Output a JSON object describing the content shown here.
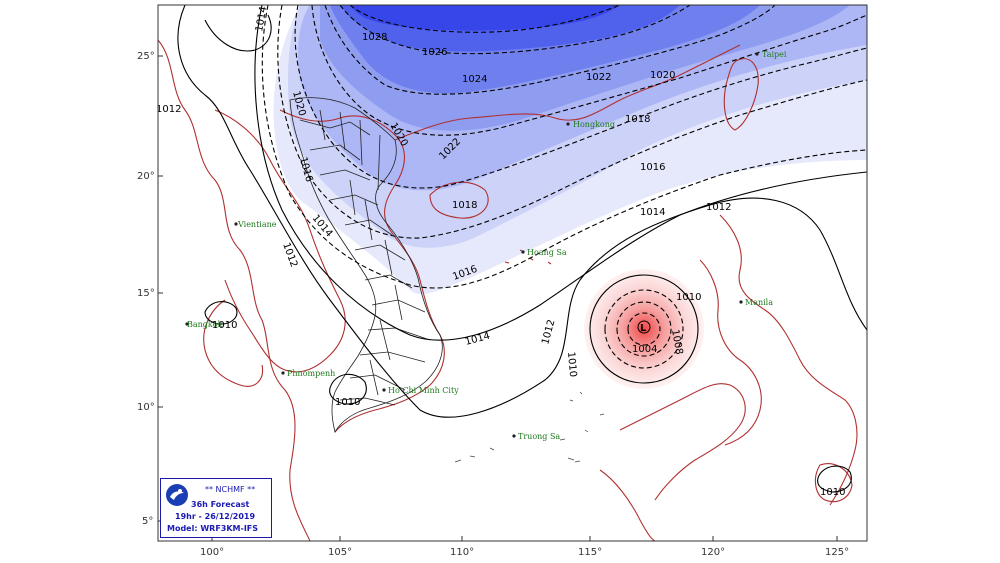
{
  "axes": {
    "y_ticks": [
      "25°",
      "20°",
      "15°",
      "10°",
      "5°"
    ],
    "x_ticks": [
      "100°",
      "105°",
      "110°",
      "115°",
      "120°",
      "125°"
    ]
  },
  "isobars": [
    "1014",
    "1028",
    "1026",
    "1024",
    "1022",
    "1020",
    "1020",
    "1018",
    "1016",
    "1016",
    "1014",
    "1012",
    "1012",
    "1010",
    "1008",
    "1004",
    "1010",
    "1012",
    "1014",
    "1016",
    "1018",
    "1022",
    "1020",
    "1014",
    "1012",
    "1010",
    "1010",
    "1010"
  ],
  "low_center": "L",
  "cities": [
    "Taipei",
    "Hongkong",
    "Vientiane",
    "Hoang Sa",
    "Bangkok",
    "Manila",
    "Phnompenh",
    "Ho Chi Minh City",
    "Truong Sa"
  ],
  "legend": {
    "org": "** NCHMF **",
    "forecast": "36h Forecast",
    "time": "19hr - 26/12/2019",
    "model": "Model: WRF3KM-IFS"
  },
  "colors": {
    "high_dark": "#2030e8",
    "high_light": "#eef0fc",
    "low_core": "#f05050",
    "coast": "#b03030",
    "border": "#222222"
  }
}
